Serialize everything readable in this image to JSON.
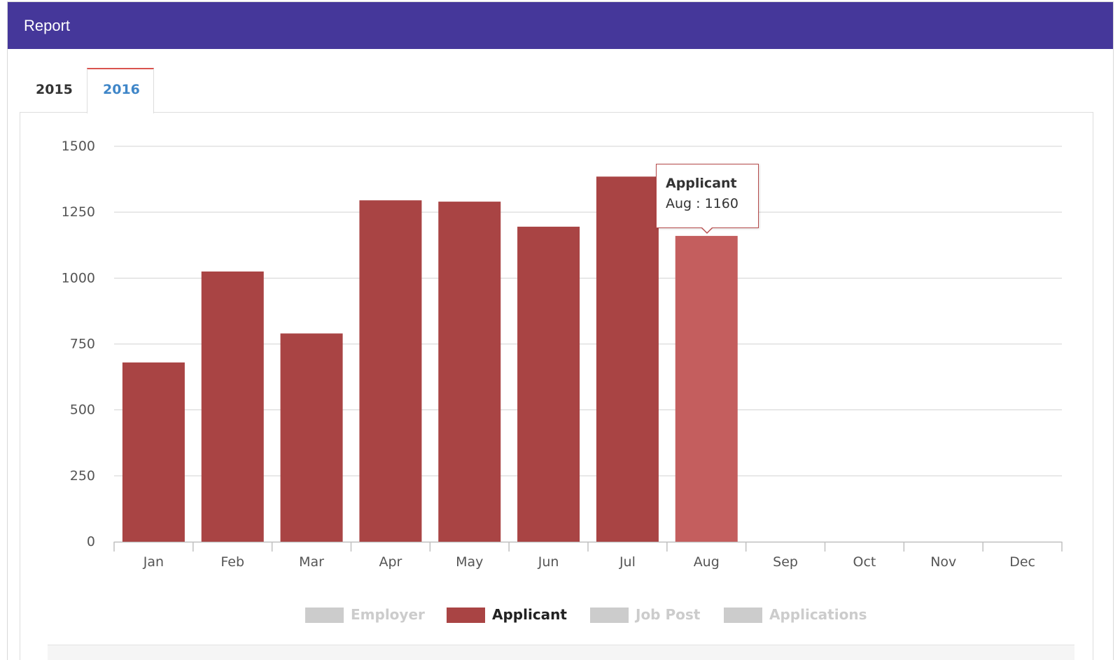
{
  "panel": {
    "title": "Report"
  },
  "tabs": [
    {
      "label": "2015",
      "active": false
    },
    {
      "label": "2016",
      "active": true
    }
  ],
  "tooltip": {
    "title": "Applicant",
    "body": "Aug : 1160"
  },
  "legend": [
    {
      "label": "Employer",
      "active": false,
      "color": "#cccccc"
    },
    {
      "label": "Applicant",
      "active": true,
      "color": "#a94444"
    },
    {
      "label": "Job Post",
      "active": false,
      "color": "#cccccc"
    },
    {
      "label": "Applications",
      "active": false,
      "color": "#cccccc"
    }
  ],
  "colors": {
    "header": "#45379a",
    "bar": "#a94444",
    "bar_hover": "#c45e5e",
    "active_tab_text": "#3f86c8",
    "active_tab_border": "#d9534f"
  },
  "chart_data": {
    "type": "bar",
    "categories": [
      "Jan",
      "Feb",
      "Mar",
      "Apr",
      "May",
      "Jun",
      "Jul",
      "Aug",
      "Sep",
      "Oct",
      "Nov",
      "Dec"
    ],
    "series": [
      {
        "name": "Applicant",
        "values": [
          680,
          1025,
          790,
          1295,
          1290,
          1195,
          1385,
          1160,
          null,
          null,
          null,
          null
        ]
      }
    ],
    "highlighted": "Aug",
    "ylim": [
      0,
      1500
    ],
    "yticks": [
      0,
      250,
      500,
      750,
      1000,
      1250,
      1500
    ],
    "grid": true,
    "legend_position": "bottom-center"
  }
}
